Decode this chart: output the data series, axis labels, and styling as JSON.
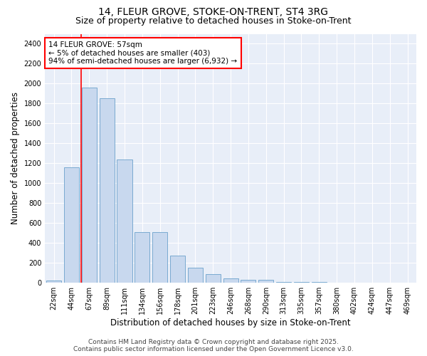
{
  "title_line1": "14, FLEUR GROVE, STOKE-ON-TRENT, ST4 3RG",
  "title_line2": "Size of property relative to detached houses in Stoke-on-Trent",
  "xlabel": "Distribution of detached houses by size in Stoke-on-Trent",
  "ylabel": "Number of detached properties",
  "categories": [
    "22sqm",
    "44sqm",
    "67sqm",
    "89sqm",
    "111sqm",
    "134sqm",
    "156sqm",
    "178sqm",
    "201sqm",
    "223sqm",
    "246sqm",
    "268sqm",
    "290sqm",
    "313sqm",
    "335sqm",
    "357sqm",
    "380sqm",
    "402sqm",
    "424sqm",
    "447sqm",
    "469sqm"
  ],
  "values": [
    22,
    1160,
    1960,
    1850,
    1240,
    510,
    510,
    270,
    155,
    90,
    45,
    32,
    28,
    12,
    8,
    6,
    4,
    3,
    2,
    2,
    1
  ],
  "bar_color": "#c8d8ee",
  "bar_edge_color": "#7aaad0",
  "vline_x": 1.55,
  "vline_color": "red",
  "annotation_text": "14 FLEUR GROVE: 57sqm\n← 5% of detached houses are smaller (403)\n94% of semi-detached houses are larger (6,932) →",
  "annotation_box_color": "white",
  "annotation_box_edge": "red",
  "ylim": [
    0,
    2500
  ],
  "yticks": [
    0,
    200,
    400,
    600,
    800,
    1000,
    1200,
    1400,
    1600,
    1800,
    2000,
    2200,
    2400
  ],
  "bg_color": "#ffffff",
  "plot_bg_color": "#e8eef8",
  "grid_color": "#ffffff",
  "footer_line1": "Contains HM Land Registry data © Crown copyright and database right 2025.",
  "footer_line2": "Contains public sector information licensed under the Open Government Licence v3.0.",
  "title_fontsize": 10,
  "subtitle_fontsize": 9,
  "axis_label_fontsize": 8.5,
  "tick_fontsize": 7,
  "footer_fontsize": 6.5,
  "annot_fontsize": 7.5
}
